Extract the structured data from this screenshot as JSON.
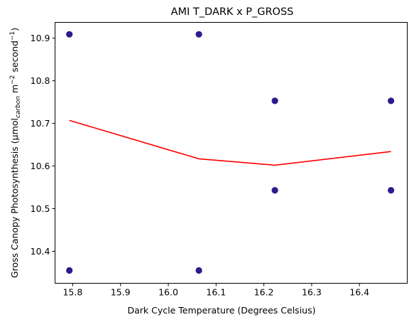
{
  "chart_data": {
    "type": "scatter",
    "title": "AMI T_DARK x P_GROSS",
    "xlabel": "Dark Cycle Temperature (Degrees Celsius)",
    "ylabel": {
      "main": "Gross Canopy Photosynthesis (μmol",
      "sub": "carbon",
      "unit_a": " m",
      "sup_a": "−2",
      "unit_b": " second",
      "sup_b": "−1",
      "close": ")"
    },
    "xlim": [
      15.763,
      16.5
    ],
    "ylim": [
      10.325,
      10.937
    ],
    "xticks": [
      15.8,
      15.9,
      16.0,
      16.1,
      16.2,
      16.3,
      16.4
    ],
    "xtick_labels": [
      "15.8",
      "15.9",
      "16.0",
      "16.1",
      "16.2",
      "16.3",
      "16.4"
    ],
    "yticks": [
      10.4,
      10.5,
      10.6,
      10.7,
      10.8,
      10.9
    ],
    "ytick_labels": [
      "10.4",
      "10.5",
      "10.6",
      "10.7",
      "10.8",
      "10.9"
    ],
    "grid": false,
    "series": [
      {
        "kind": "scatter",
        "color": "#2c1a8f",
        "points": [
          [
            15.793,
            10.909
          ],
          [
            15.793,
            10.355
          ],
          [
            16.064,
            10.909
          ],
          [
            16.064,
            10.355
          ],
          [
            16.223,
            10.753
          ],
          [
            16.223,
            10.543
          ],
          [
            16.466,
            10.753
          ],
          [
            16.466,
            10.543
          ]
        ]
      },
      {
        "kind": "line",
        "color": "#ff0000",
        "points": [
          [
            15.793,
            10.707
          ],
          [
            16.064,
            10.617
          ],
          [
            16.223,
            10.602
          ],
          [
            16.466,
            10.634
          ]
        ]
      }
    ]
  }
}
